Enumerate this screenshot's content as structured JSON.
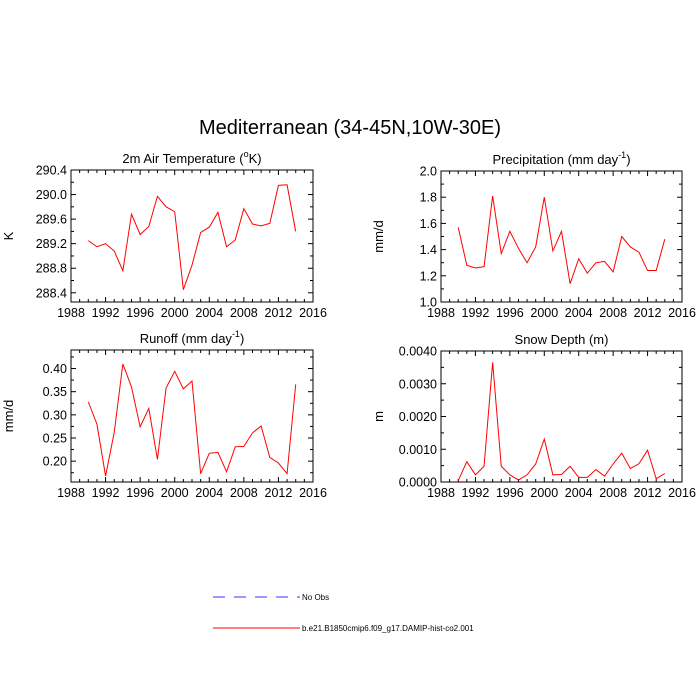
{
  "figure": {
    "title": "Mediterranean (34-45N,10W-30E)"
  },
  "legend": {
    "items": [
      {
        "label": "No Obs",
        "color": "#3333ff",
        "dash": true
      },
      {
        "label": "b.e21.B1850cmip6.f09_g17.DAMIP-hist-co2.001",
        "color": "#ff0000",
        "dash": false
      }
    ]
  },
  "chart_data": [
    {
      "type": "line",
      "title_main": "2m Air Temperature (",
      "title_sup": "o",
      "title_end": "K)",
      "xlabel": "",
      "ylabel": "K",
      "xlim": [
        1988,
        2016
      ],
      "ylim": [
        288.25,
        290.4
      ],
      "xticks": [
        "1988",
        "1992",
        "1996",
        "2000",
        "2004",
        "2008",
        "2012",
        "2016"
      ],
      "yticks": [
        "288.4",
        "288.8",
        "289.2",
        "289.6",
        "290.0",
        "290.4"
      ],
      "color": "#ff0000",
      "x": [
        1990,
        1991,
        1992,
        1993,
        1994,
        1995,
        1996,
        1997,
        1998,
        1999,
        2000,
        2001,
        2002,
        2003,
        2004,
        2005,
        2006,
        2007,
        2008,
        2009,
        2010,
        2011,
        2012,
        2013,
        2014
      ],
      "series": [
        {
          "values": [
            289.25,
            289.15,
            289.2,
            289.08,
            288.76,
            289.68,
            289.35,
            289.48,
            289.97,
            289.8,
            289.72,
            288.45,
            288.85,
            289.38,
            289.47,
            289.71,
            289.15,
            289.26,
            289.77,
            289.52,
            289.49,
            289.53,
            290.15,
            290.16,
            289.4
          ]
        }
      ]
    },
    {
      "type": "line",
      "title_main": "Precipitation (mm day",
      "title_sup": "-1",
      "title_end": ")",
      "xlabel": "",
      "ylabel": "mm/d",
      "xlim": [
        1988,
        2016
      ],
      "ylim": [
        1.0,
        2.0
      ],
      "xticks": [
        "1988",
        "1992",
        "1996",
        "2000",
        "2004",
        "2008",
        "2012",
        "2016"
      ],
      "yticks": [
        "1.0",
        "1.2",
        "1.4",
        "1.6",
        "1.8",
        "2.0"
      ],
      "color": "#ff0000",
      "x": [
        1990,
        1991,
        1992,
        1993,
        1994,
        1995,
        1996,
        1997,
        1998,
        1999,
        2000,
        2001,
        2002,
        2003,
        2004,
        2005,
        2006,
        2007,
        2008,
        2009,
        2010,
        2011,
        2012,
        2013,
        2014
      ],
      "series": [
        {
          "values": [
            1.57,
            1.28,
            1.26,
            1.27,
            1.81,
            1.37,
            1.54,
            1.41,
            1.3,
            1.42,
            1.8,
            1.39,
            1.54,
            1.14,
            1.33,
            1.22,
            1.3,
            1.31,
            1.23,
            1.5,
            1.42,
            1.38,
            1.24,
            1.24,
            1.48
          ]
        }
      ]
    },
    {
      "type": "line",
      "title_main": "Runoff (mm day",
      "title_sup": "-1",
      "title_end": ")",
      "xlabel": "",
      "ylabel": "mm/d",
      "xlim": [
        1988,
        2016
      ],
      "ylim": [
        0.155,
        0.44
      ],
      "xticks": [
        "1988",
        "1992",
        "1996",
        "2000",
        "2004",
        "2008",
        "2012",
        "2016"
      ],
      "yticks": [
        "0.20",
        "0.25",
        "0.30",
        "0.35",
        "0.40"
      ],
      "color": "#ff0000",
      "x": [
        1990,
        1991,
        1992,
        1993,
        1994,
        1995,
        1996,
        1997,
        1998,
        1999,
        2000,
        2001,
        2002,
        2003,
        2004,
        2005,
        2006,
        2007,
        2008,
        2009,
        2010,
        2011,
        2012,
        2013,
        2014
      ],
      "series": [
        {
          "values": [
            0.328,
            0.28,
            0.168,
            0.262,
            0.41,
            0.36,
            0.274,
            0.314,
            0.204,
            0.358,
            0.394,
            0.356,
            0.373,
            0.173,
            0.217,
            0.219,
            0.177,
            0.231,
            0.232,
            0.261,
            0.276,
            0.208,
            0.196,
            0.173,
            0.366
          ]
        }
      ]
    },
    {
      "type": "line",
      "title_main": "Snow Depth (m)",
      "title_sup": "",
      "title_end": "",
      "xlabel": "",
      "ylabel": "m",
      "xlim": [
        1988,
        2016
      ],
      "ylim": [
        0.0,
        0.004
      ],
      "xticks": [
        "1988",
        "1992",
        "1996",
        "2000",
        "2004",
        "2008",
        "2012",
        "2016"
      ],
      "yticks": [
        "0.0000",
        "0.0010",
        "0.0020",
        "0.0030",
        "0.0040"
      ],
      "color": "#ff0000",
      "x": [
        1990,
        1991,
        1992,
        1993,
        1994,
        1995,
        1996,
        1997,
        1998,
        1999,
        2000,
        2001,
        2002,
        2003,
        2004,
        2005,
        2006,
        2007,
        2008,
        2009,
        2010,
        2011,
        2012,
        2013,
        2014
      ],
      "series": [
        {
          "values": [
            4e-05,
            0.00062,
            0.00022,
            0.00048,
            0.00365,
            0.00048,
            0.00022,
            6e-05,
            0.00022,
            0.00055,
            0.00131,
            0.00022,
            0.00023,
            0.00048,
            0.00014,
            0.00014,
            0.00038,
            0.00018,
            0.00055,
            0.00088,
            0.00041,
            0.00056,
            0.00097,
            0.0001,
            0.00026
          ]
        }
      ]
    }
  ]
}
